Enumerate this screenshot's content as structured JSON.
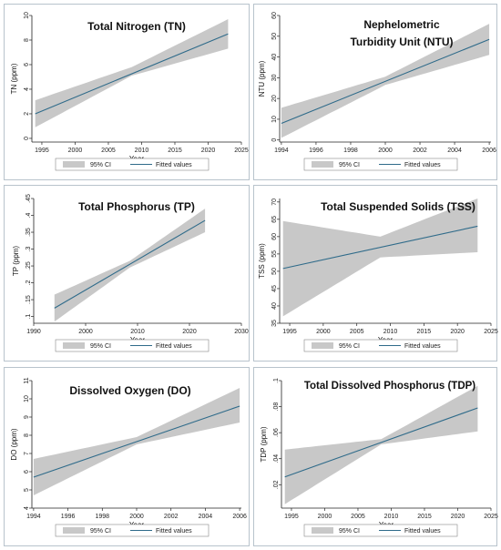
{
  "legend": {
    "ci_label": "95% CI",
    "fit_label": "Fitted values"
  },
  "colors": {
    "band": "#c8c8c8",
    "line": "#2f6b8a",
    "frame": "#b8c3cc"
  },
  "chart_data": [
    {
      "type": "line",
      "title": "Total Nitrogen (TN)",
      "xlabel": "Year",
      "ylabel": "TN (ppm)",
      "xlim": [
        1993.5,
        2025
      ],
      "ylim": [
        -0.3,
        10
      ],
      "xticks": [
        1995,
        2000,
        2005,
        2010,
        2015,
        2020,
        2025
      ],
      "yticks": [
        0,
        2,
        4,
        6,
        8,
        10
      ],
      "fit": {
        "x": [
          1994,
          2023
        ],
        "y": [
          2.0,
          8.5
        ]
      },
      "ci": {
        "x": [
          1994,
          2008.5,
          2023
        ],
        "lower": [
          0.9,
          5.1,
          7.3
        ],
        "upper": [
          3.1,
          5.8,
          9.7
        ]
      },
      "series": [
        {
          "name": "95% CI"
        },
        {
          "name": "Fitted values"
        }
      ]
    },
    {
      "type": "line",
      "title": "Nephelometric Turbidity Unit (NTU)",
      "title_lines": [
        "Nephelometric",
        "Turbidity Unit (NTU)"
      ],
      "xlabel": "",
      "ylabel": "NTU (ppm)",
      "xlim": [
        1993.9,
        2006.1
      ],
      "ylim": [
        -1,
        60
      ],
      "xticks": [
        1994,
        1996,
        1998,
        2000,
        2002,
        2004,
        2006
      ],
      "yticks": [
        0,
        10,
        20,
        30,
        40,
        50,
        60
      ],
      "fit": {
        "x": [
          1994,
          2006
        ],
        "y": [
          8,
          48.5
        ]
      },
      "ci": {
        "x": [
          1994,
          2000,
          2006
        ],
        "lower": [
          1,
          26.5,
          41
        ],
        "upper": [
          15.5,
          30.5,
          56
        ]
      },
      "series": [
        {
          "name": "95% CI"
        },
        {
          "name": "Fitted values"
        }
      ]
    },
    {
      "type": "line",
      "title": "Total Phosphorus (TP)",
      "xlabel": "Year",
      "ylabel": "TP (ppm)",
      "xlim": [
        1990,
        2030
      ],
      "ylim": [
        0.08,
        0.45
      ],
      "xticks": [
        1990,
        2000,
        2010,
        2020,
        2030
      ],
      "yticks": [
        0.1,
        0.15,
        0.2,
        0.25,
        0.3,
        0.35,
        0.4,
        0.45
      ],
      "ytick_labels": [
        ".1",
        ".15",
        ".2",
        ".25",
        ".3",
        ".35",
        ".4",
        ".45"
      ],
      "fit": {
        "x": [
          1994,
          2023
        ],
        "y": [
          0.125,
          0.385
        ]
      },
      "ci": {
        "x": [
          1994,
          2008.5,
          2023
        ],
        "lower": [
          0.085,
          0.245,
          0.35
        ],
        "upper": [
          0.165,
          0.265,
          0.42
        ]
      },
      "series": [
        {
          "name": "95% CI"
        },
        {
          "name": "Fitted values"
        }
      ]
    },
    {
      "type": "line",
      "title": "Total Suspended Solids (TSS)",
      "xlabel": "Year",
      "ylabel": "TSS (ppm)",
      "xlim": [
        1993.5,
        2025
      ],
      "ylim": [
        35,
        71
      ],
      "xticks": [
        1995,
        2000,
        2005,
        2010,
        2015,
        2020,
        2025
      ],
      "yticks": [
        35,
        40,
        45,
        50,
        55,
        60,
        65,
        70
      ],
      "fit": {
        "x": [
          1994,
          2023
        ],
        "y": [
          50.8,
          63
        ]
      },
      "ci": {
        "x": [
          1994,
          2008.5,
          2023
        ],
        "lower": [
          37,
          54,
          55.5
        ],
        "upper": [
          64.5,
          60,
          71
        ]
      },
      "series": [
        {
          "name": "95% CI"
        },
        {
          "name": "Fitted values"
        }
      ]
    },
    {
      "type": "line",
      "title": "Dissolved Oxygen (DO)",
      "xlabel": "Year",
      "ylabel": "DO (ppm)",
      "xlim": [
        1993.9,
        2006.1
      ],
      "ylim": [
        4,
        11
      ],
      "xticks": [
        1994,
        1996,
        1998,
        2000,
        2002,
        2004,
        2006
      ],
      "yticks": [
        4,
        5,
        6,
        7,
        8,
        9,
        10,
        11
      ],
      "fit": {
        "x": [
          1994,
          2006
        ],
        "y": [
          5.7,
          9.6
        ]
      },
      "ci": {
        "x": [
          1994,
          2000,
          2006
        ],
        "lower": [
          4.7,
          7.5,
          8.7
        ],
        "upper": [
          6.7,
          7.9,
          10.6
        ]
      },
      "series": [
        {
          "name": "95% CI"
        },
        {
          "name": "Fitted values"
        }
      ]
    },
    {
      "type": "line",
      "title": "Total Dissolved Phosphorus (TDP)",
      "xlabel": "Year",
      "ylabel": "TDP (ppm)",
      "xlim": [
        1993.5,
        2025
      ],
      "ylim": [
        0.002,
        0.1
      ],
      "xticks": [
        1995,
        2000,
        2005,
        2010,
        2015,
        2020,
        2025
      ],
      "yticks": [
        0.02,
        0.04,
        0.06,
        0.08,
        0.1
      ],
      "ytick_labels": [
        ".02",
        ".04",
        ".06",
        ".08",
        ".1"
      ],
      "fit": {
        "x": [
          1994,
          2023
        ],
        "y": [
          0.026,
          0.079
        ]
      },
      "ci": {
        "x": [
          1994,
          2008.5,
          2023
        ],
        "lower": [
          0.005,
          0.051,
          0.061
        ],
        "upper": [
          0.047,
          0.055,
          0.096
        ]
      },
      "series": [
        {
          "name": "95% CI"
        },
        {
          "name": "Fitted values"
        }
      ]
    }
  ]
}
